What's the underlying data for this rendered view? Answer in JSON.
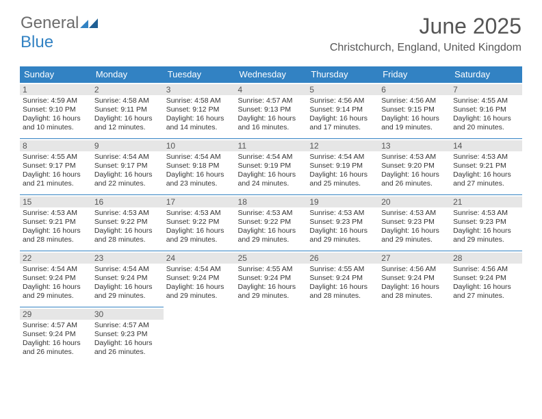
{
  "brand": {
    "general": "General",
    "blue": "Blue"
  },
  "header": {
    "title": "June 2025",
    "location": "Christchurch, England, United Kingdom"
  },
  "colors": {
    "header_bg": "#3282c3",
    "header_fg": "#ffffff",
    "daynum_bg": "#e6e6e6",
    "text": "#333333",
    "title": "#555555",
    "rule": "#3282c3"
  },
  "weekdays": [
    "Sunday",
    "Monday",
    "Tuesday",
    "Wednesday",
    "Thursday",
    "Friday",
    "Saturday"
  ],
  "weeks": [
    [
      {
        "d": "1",
        "sr": "Sunrise: 4:59 AM",
        "ss": "Sunset: 9:10 PM",
        "dl1": "Daylight: 16 hours",
        "dl2": "and 10 minutes."
      },
      {
        "d": "2",
        "sr": "Sunrise: 4:58 AM",
        "ss": "Sunset: 9:11 PM",
        "dl1": "Daylight: 16 hours",
        "dl2": "and 12 minutes."
      },
      {
        "d": "3",
        "sr": "Sunrise: 4:58 AM",
        "ss": "Sunset: 9:12 PM",
        "dl1": "Daylight: 16 hours",
        "dl2": "and 14 minutes."
      },
      {
        "d": "4",
        "sr": "Sunrise: 4:57 AM",
        "ss": "Sunset: 9:13 PM",
        "dl1": "Daylight: 16 hours",
        "dl2": "and 16 minutes."
      },
      {
        "d": "5",
        "sr": "Sunrise: 4:56 AM",
        "ss": "Sunset: 9:14 PM",
        "dl1": "Daylight: 16 hours",
        "dl2": "and 17 minutes."
      },
      {
        "d": "6",
        "sr": "Sunrise: 4:56 AM",
        "ss": "Sunset: 9:15 PM",
        "dl1": "Daylight: 16 hours",
        "dl2": "and 19 minutes."
      },
      {
        "d": "7",
        "sr": "Sunrise: 4:55 AM",
        "ss": "Sunset: 9:16 PM",
        "dl1": "Daylight: 16 hours",
        "dl2": "and 20 minutes."
      }
    ],
    [
      {
        "d": "8",
        "sr": "Sunrise: 4:55 AM",
        "ss": "Sunset: 9:17 PM",
        "dl1": "Daylight: 16 hours",
        "dl2": "and 21 minutes."
      },
      {
        "d": "9",
        "sr": "Sunrise: 4:54 AM",
        "ss": "Sunset: 9:17 PM",
        "dl1": "Daylight: 16 hours",
        "dl2": "and 22 minutes."
      },
      {
        "d": "10",
        "sr": "Sunrise: 4:54 AM",
        "ss": "Sunset: 9:18 PM",
        "dl1": "Daylight: 16 hours",
        "dl2": "and 23 minutes."
      },
      {
        "d": "11",
        "sr": "Sunrise: 4:54 AM",
        "ss": "Sunset: 9:19 PM",
        "dl1": "Daylight: 16 hours",
        "dl2": "and 24 minutes."
      },
      {
        "d": "12",
        "sr": "Sunrise: 4:54 AM",
        "ss": "Sunset: 9:19 PM",
        "dl1": "Daylight: 16 hours",
        "dl2": "and 25 minutes."
      },
      {
        "d": "13",
        "sr": "Sunrise: 4:53 AM",
        "ss": "Sunset: 9:20 PM",
        "dl1": "Daylight: 16 hours",
        "dl2": "and 26 minutes."
      },
      {
        "d": "14",
        "sr": "Sunrise: 4:53 AM",
        "ss": "Sunset: 9:21 PM",
        "dl1": "Daylight: 16 hours",
        "dl2": "and 27 minutes."
      }
    ],
    [
      {
        "d": "15",
        "sr": "Sunrise: 4:53 AM",
        "ss": "Sunset: 9:21 PM",
        "dl1": "Daylight: 16 hours",
        "dl2": "and 28 minutes."
      },
      {
        "d": "16",
        "sr": "Sunrise: 4:53 AM",
        "ss": "Sunset: 9:22 PM",
        "dl1": "Daylight: 16 hours",
        "dl2": "and 28 minutes."
      },
      {
        "d": "17",
        "sr": "Sunrise: 4:53 AM",
        "ss": "Sunset: 9:22 PM",
        "dl1": "Daylight: 16 hours",
        "dl2": "and 29 minutes."
      },
      {
        "d": "18",
        "sr": "Sunrise: 4:53 AM",
        "ss": "Sunset: 9:22 PM",
        "dl1": "Daylight: 16 hours",
        "dl2": "and 29 minutes."
      },
      {
        "d": "19",
        "sr": "Sunrise: 4:53 AM",
        "ss": "Sunset: 9:23 PM",
        "dl1": "Daylight: 16 hours",
        "dl2": "and 29 minutes."
      },
      {
        "d": "20",
        "sr": "Sunrise: 4:53 AM",
        "ss": "Sunset: 9:23 PM",
        "dl1": "Daylight: 16 hours",
        "dl2": "and 29 minutes."
      },
      {
        "d": "21",
        "sr": "Sunrise: 4:53 AM",
        "ss": "Sunset: 9:23 PM",
        "dl1": "Daylight: 16 hours",
        "dl2": "and 29 minutes."
      }
    ],
    [
      {
        "d": "22",
        "sr": "Sunrise: 4:54 AM",
        "ss": "Sunset: 9:24 PM",
        "dl1": "Daylight: 16 hours",
        "dl2": "and 29 minutes."
      },
      {
        "d": "23",
        "sr": "Sunrise: 4:54 AM",
        "ss": "Sunset: 9:24 PM",
        "dl1": "Daylight: 16 hours",
        "dl2": "and 29 minutes."
      },
      {
        "d": "24",
        "sr": "Sunrise: 4:54 AM",
        "ss": "Sunset: 9:24 PM",
        "dl1": "Daylight: 16 hours",
        "dl2": "and 29 minutes."
      },
      {
        "d": "25",
        "sr": "Sunrise: 4:55 AM",
        "ss": "Sunset: 9:24 PM",
        "dl1": "Daylight: 16 hours",
        "dl2": "and 29 minutes."
      },
      {
        "d": "26",
        "sr": "Sunrise: 4:55 AM",
        "ss": "Sunset: 9:24 PM",
        "dl1": "Daylight: 16 hours",
        "dl2": "and 28 minutes."
      },
      {
        "d": "27",
        "sr": "Sunrise: 4:56 AM",
        "ss": "Sunset: 9:24 PM",
        "dl1": "Daylight: 16 hours",
        "dl2": "and 28 minutes."
      },
      {
        "d": "28",
        "sr": "Sunrise: 4:56 AM",
        "ss": "Sunset: 9:24 PM",
        "dl1": "Daylight: 16 hours",
        "dl2": "and 27 minutes."
      }
    ],
    [
      {
        "d": "29",
        "sr": "Sunrise: 4:57 AM",
        "ss": "Sunset: 9:24 PM",
        "dl1": "Daylight: 16 hours",
        "dl2": "and 26 minutes."
      },
      {
        "d": "30",
        "sr": "Sunrise: 4:57 AM",
        "ss": "Sunset: 9:23 PM",
        "dl1": "Daylight: 16 hours",
        "dl2": "and 26 minutes."
      },
      null,
      null,
      null,
      null,
      null
    ]
  ]
}
